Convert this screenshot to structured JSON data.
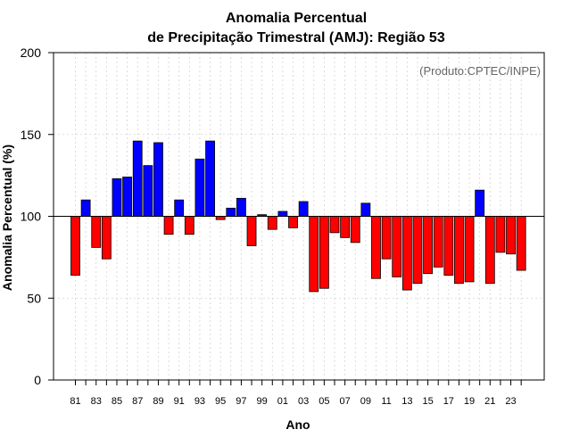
{
  "chart_data": {
    "type": "bar",
    "title": [
      "Anomalia Percentual",
      "de Precipitação Trimestral (AMJ): Região 53"
    ],
    "credit": "(Produto:CPTEC/INPE)",
    "xlabel": "Ano",
    "ylabel": "Anomalia Percentual (%)",
    "ylim": [
      0,
      200
    ],
    "yticks": [
      0,
      50,
      100,
      150,
      200
    ],
    "baseline": 100,
    "grid": true,
    "colors": {
      "above": "#0000ff",
      "below": "#ff0000",
      "baseline": "#000000",
      "grid": "#d3d3d3"
    },
    "xtick_labels": [
      "81",
      "83",
      "85",
      "87",
      "89",
      "91",
      "93",
      "95",
      "97",
      "99",
      "01",
      "03",
      "05",
      "07",
      "09",
      "11",
      "13",
      "15",
      "17",
      "19",
      "21",
      "23"
    ],
    "categories": [
      "1981",
      "1982",
      "1983",
      "1984",
      "1985",
      "1986",
      "1987",
      "1988",
      "1989",
      "1990",
      "1991",
      "1992",
      "1993",
      "1994",
      "1995",
      "1996",
      "1997",
      "1998",
      "1999",
      "2000",
      "2001",
      "2002",
      "2003",
      "2004",
      "2005",
      "2006",
      "2007",
      "2008",
      "2009",
      "2010",
      "2011",
      "2012",
      "2013",
      "2014",
      "2015",
      "2016",
      "2017",
      "2018",
      "2019",
      "2020",
      "2021",
      "2022",
      "2023",
      "2024"
    ],
    "values": [
      64,
      110,
      81,
      74,
      123,
      124,
      146,
      131,
      145,
      89,
      110,
      89,
      135,
      146,
      98,
      105,
      111,
      82,
      101,
      92,
      103,
      93,
      109,
      54,
      56,
      90,
      87,
      84,
      108,
      62,
      74,
      63,
      55,
      59,
      65,
      69,
      64,
      59,
      60,
      116,
      59,
      78,
      77,
      67
    ]
  }
}
